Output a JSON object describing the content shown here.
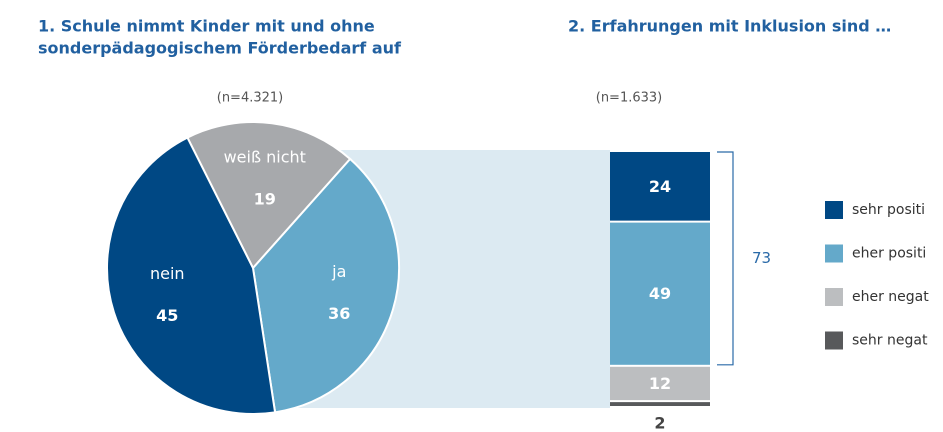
{
  "chart_data": [
    {
      "type": "pie",
      "title": [
        "1. Schule nimmt Kinder mit und ohne",
        "sonderpädagogischem Förderbedarf auf"
      ],
      "subtitle": "(n=4.321)",
      "categories": [
        "weiß nicht",
        "ja",
        "nein"
      ],
      "values": [
        19,
        36,
        45
      ],
      "colors": [
        "#a7a9ac",
        "#64a9ca",
        "#004884"
      ]
    },
    {
      "type": "stacked_bar",
      "title": [
        "2. Erfahrungen mit Inklusion sind …"
      ],
      "subtitle": "(n=1.633)",
      "series": [
        {
          "name": "sehr positi",
          "color": "#004884",
          "values": [
            24
          ]
        },
        {
          "name": "eher positi",
          "color": "#64a9ca",
          "values": [
            49
          ]
        },
        {
          "name": "eher negat",
          "color": "#bcbec0",
          "values": [
            12
          ]
        },
        {
          "name": "sehr negat",
          "color": "#58595b",
          "values": [
            2
          ]
        }
      ],
      "bracket": 73
    }
  ]
}
